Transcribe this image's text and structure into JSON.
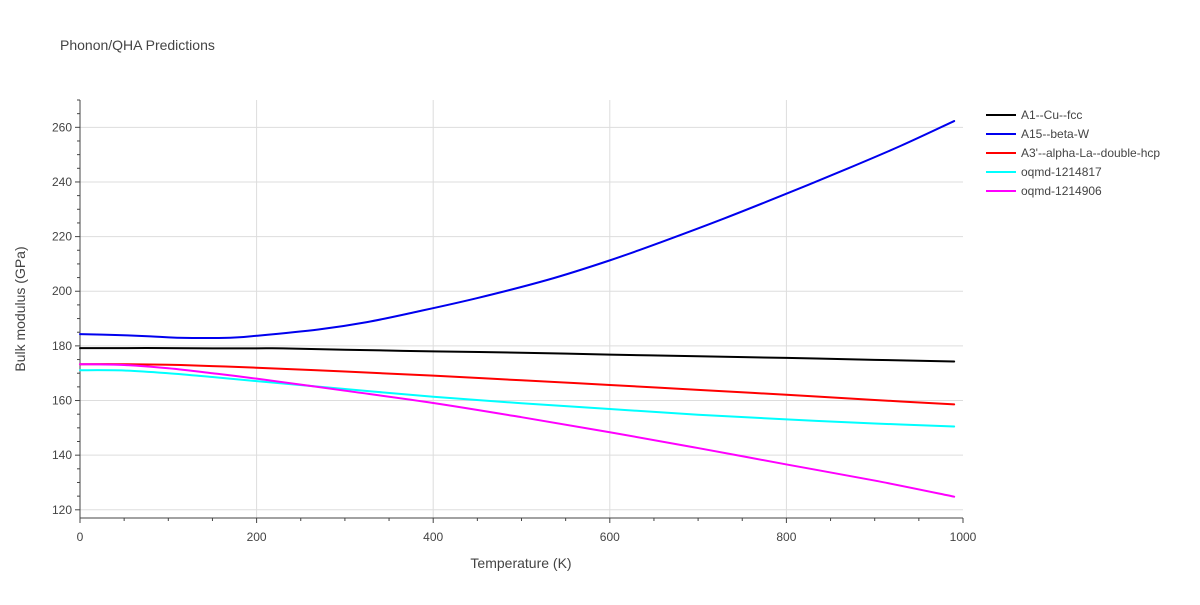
{
  "chart_data": {
    "type": "line",
    "title": "Phonon/QHA Predictions",
    "xlabel": "Temperature (K)",
    "ylabel": "Bulk modulus (GPa)",
    "xlim": [
      0,
      1000
    ],
    "ylim": [
      117,
      270
    ],
    "x_ticks": [
      0,
      200,
      400,
      600,
      800,
      1000
    ],
    "x_tick_labels": [
      "0",
      "200",
      "400",
      "600",
      "800",
      "1000"
    ],
    "y_ticks": [
      120,
      140,
      160,
      180,
      200,
      220,
      240,
      260
    ],
    "y_tick_labels": [
      "120",
      "140",
      "160",
      "180",
      "200",
      "220",
      "240",
      "260"
    ],
    "grid": true,
    "legend_position": "top-right",
    "series": [
      {
        "name": "A1--Cu--fcc",
        "color": "#000000",
        "x": [
          0,
          50,
          100,
          150,
          200,
          230,
          300,
          400,
          500,
          600,
          700,
          800,
          900,
          990
        ],
        "y": [
          179.2,
          179.2,
          179.2,
          179.1,
          179.1,
          179.1,
          178.6,
          178.0,
          177.5,
          176.8,
          176.2,
          175.6,
          174.9,
          174.3
        ]
      },
      {
        "name": "A15--beta-W",
        "color": "#0000ee",
        "x": [
          0,
          40,
          80,
          110,
          170,
          200,
          270,
          325,
          380,
          450,
          530,
          600,
          660,
          730,
          800,
          870,
          930,
          990
        ],
        "y": [
          184.3,
          184.0,
          183.5,
          183.0,
          183.0,
          183.7,
          186.0,
          188.7,
          192.4,
          197.5,
          204.2,
          211.3,
          218.2,
          226.7,
          235.7,
          245.0,
          253.3,
          262.3
        ]
      },
      {
        "name": "A3'--alpha-La--double-hcp",
        "color": "#ff0000",
        "x": [
          0,
          50,
          100,
          150,
          200,
          300,
          400,
          500,
          600,
          700,
          800,
          900,
          990
        ],
        "y": [
          173.3,
          173.3,
          173.1,
          172.6,
          172.0,
          170.6,
          169.1,
          167.4,
          165.7,
          163.9,
          162.1,
          160.2,
          158.6
        ]
      },
      {
        "name": "oqmd-1214817",
        "color": "#00ffff",
        "x": [
          0,
          50,
          100,
          150,
          200,
          300,
          400,
          500,
          600,
          700,
          800,
          900,
          990
        ],
        "y": [
          171.1,
          171.0,
          170.0,
          168.6,
          167.1,
          164.2,
          161.4,
          159.0,
          156.9,
          154.8,
          153.1,
          151.6,
          150.5
        ]
      },
      {
        "name": "oqmd-1214906",
        "color": "#ff00ff",
        "x": [
          0,
          50,
          100,
          150,
          200,
          300,
          400,
          500,
          600,
          700,
          800,
          900,
          990
        ],
        "y": [
          173.3,
          173.0,
          171.8,
          170.0,
          168.0,
          163.6,
          159.1,
          153.9,
          148.4,
          142.6,
          136.6,
          130.7,
          124.8
        ]
      }
    ]
  }
}
